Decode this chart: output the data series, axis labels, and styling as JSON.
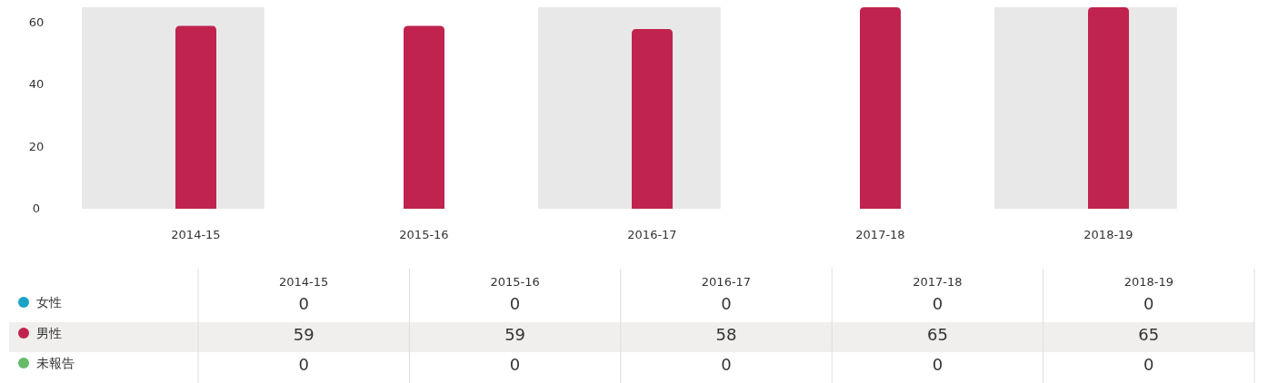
{
  "chart_data": {
    "type": "bar",
    "stacked": true,
    "categories": [
      "2014-15",
      "2015-16",
      "2016-17",
      "2017-18",
      "2018-19"
    ],
    "series": [
      {
        "name": "女性",
        "color": "#1ba3c6",
        "values": [
          0,
          0,
          0,
          0,
          0
        ]
      },
      {
        "name": "男性",
        "color": "#c0234e",
        "values": [
          59,
          59,
          58,
          65,
          65
        ]
      },
      {
        "name": "未報告",
        "color": "#66bb6a",
        "values": [
          0,
          0,
          0,
          0,
          0
        ]
      }
    ],
    "bands": [
      {
        "axis": "x",
        "from": "2014-15",
        "to": "2014-15",
        "color": "#e8e8e8"
      },
      {
        "axis": "x",
        "from": "2016-17",
        "to": "2016-17",
        "color": "#e8e8e8"
      },
      {
        "axis": "x",
        "from": "2018-19",
        "to": "2018-19",
        "color": "#e8e8e8"
      }
    ],
    "ylim": [
      0,
      65
    ],
    "yticks": [
      0,
      20,
      40,
      60
    ],
    "grid": false,
    "legend": "bottom",
    "data_labels": true
  }
}
